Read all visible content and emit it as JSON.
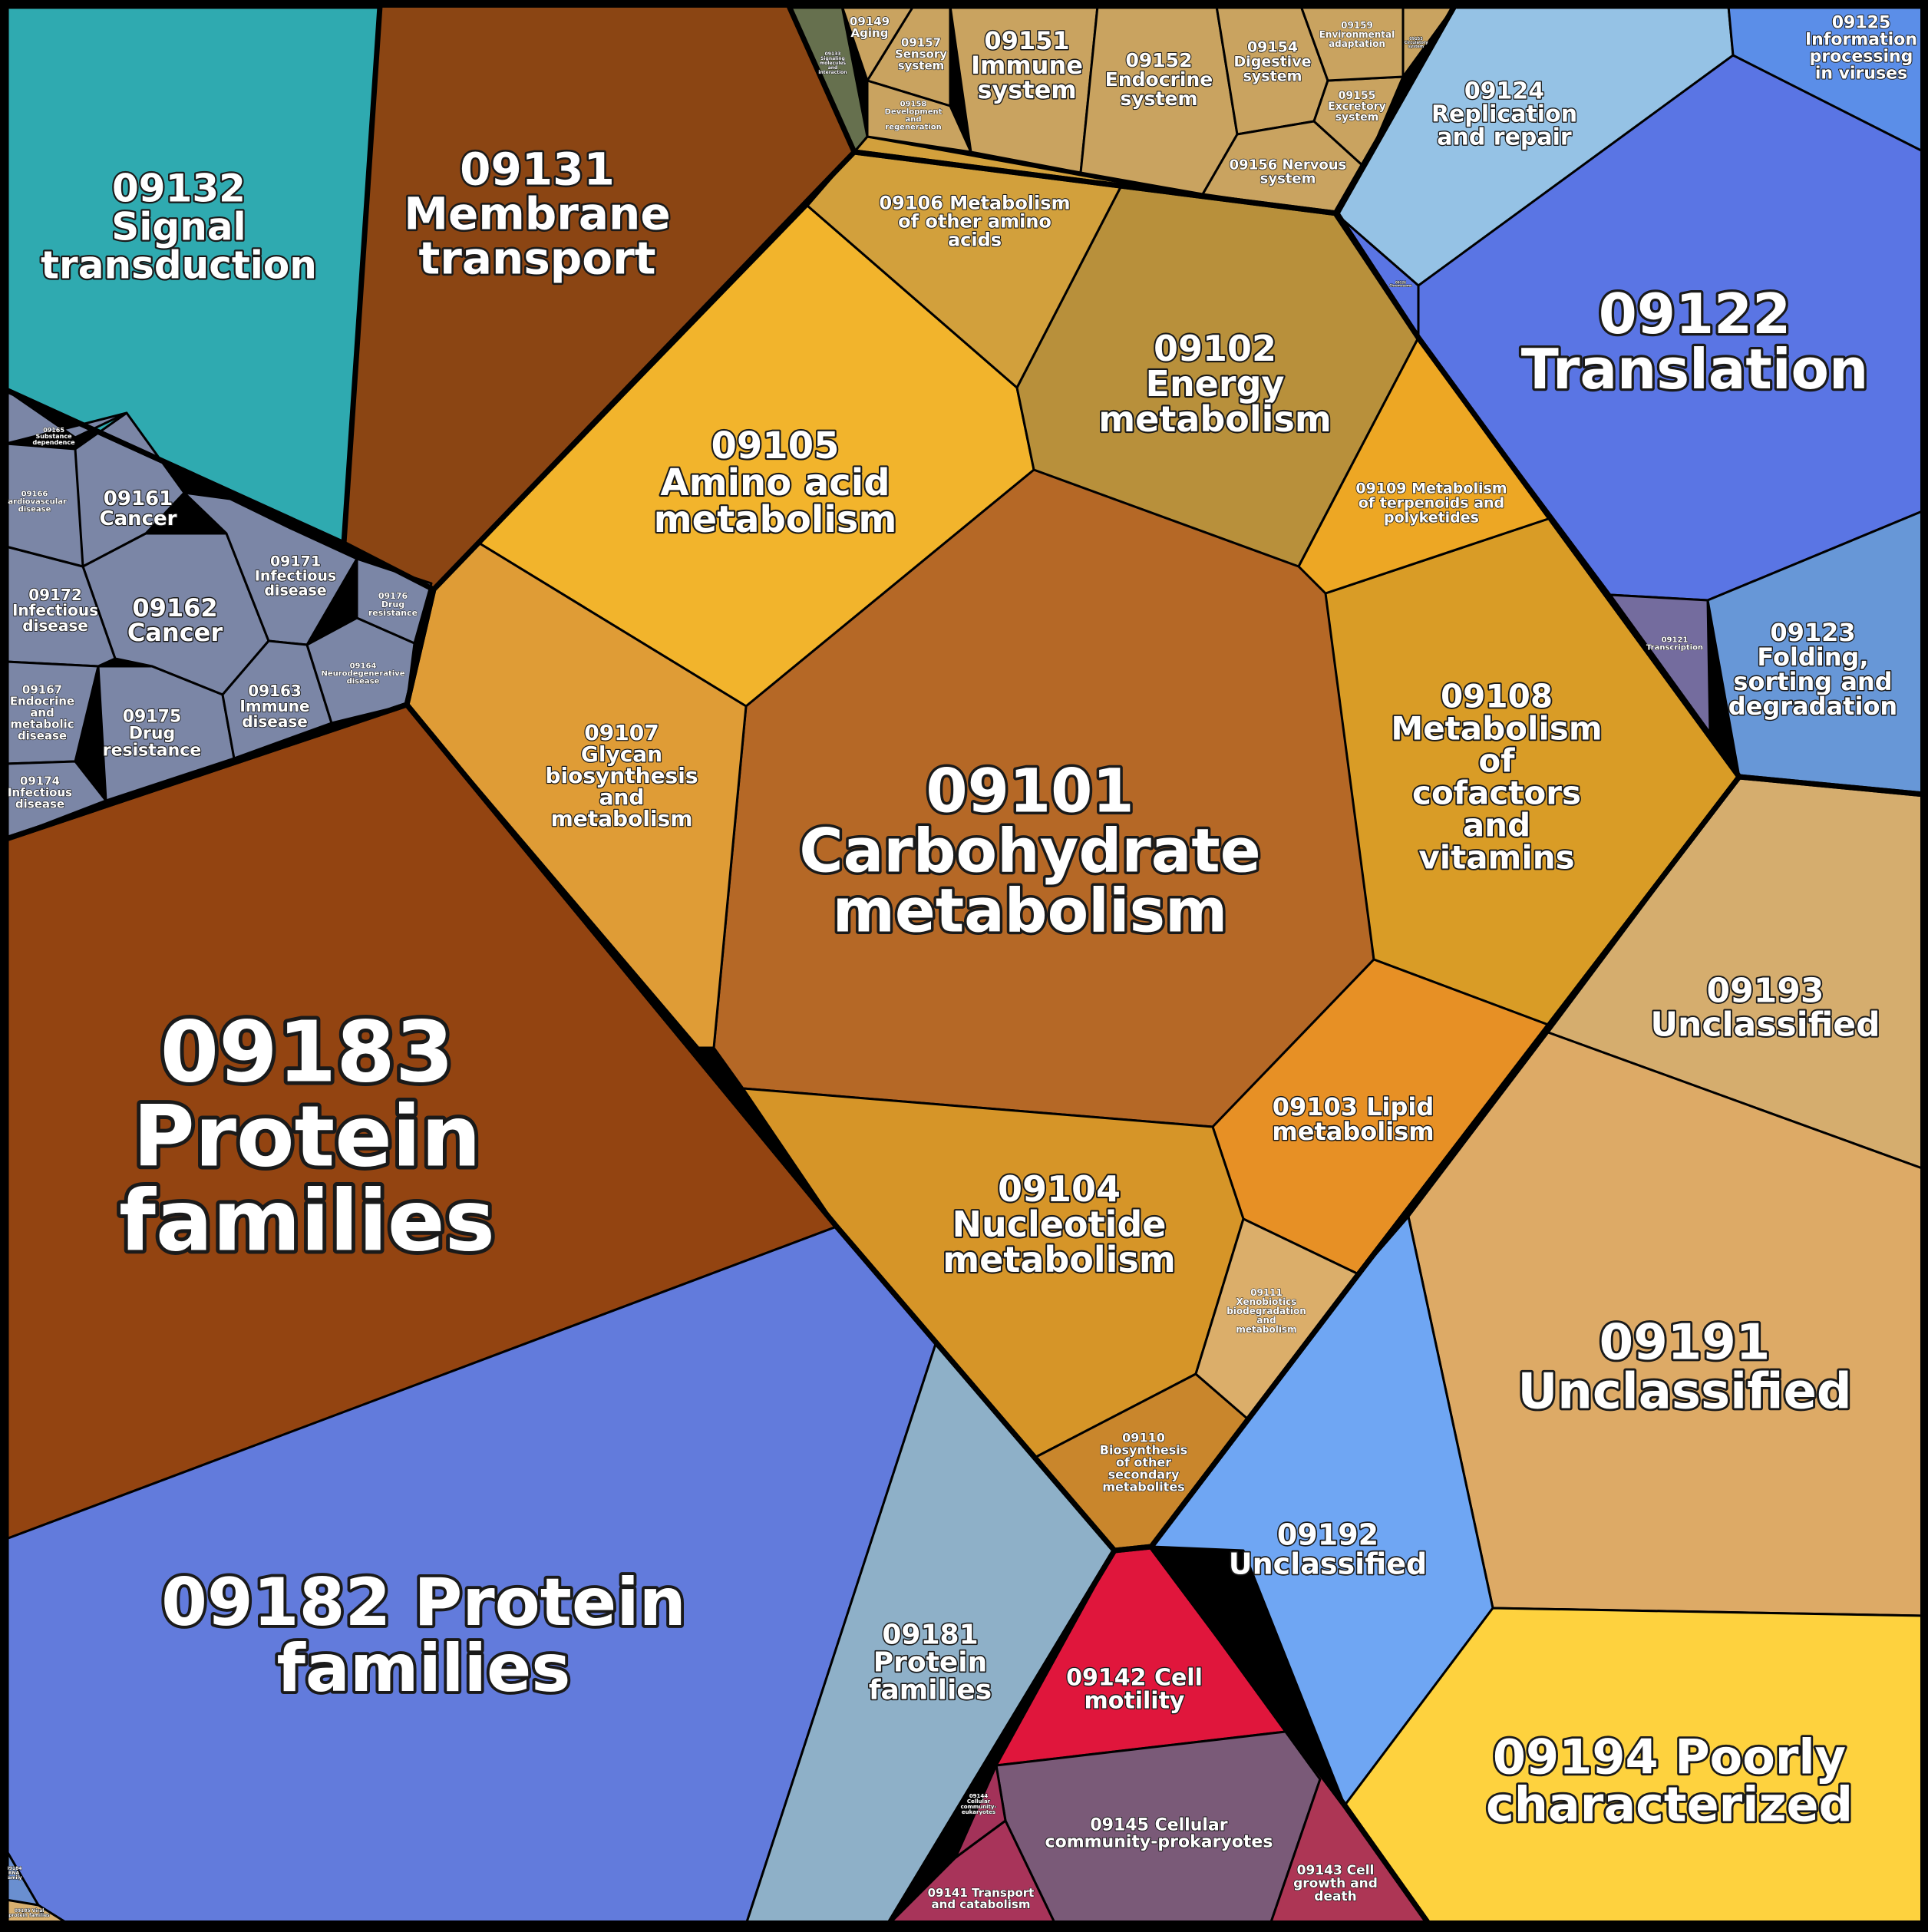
{
  "cells": [
    {
      "id": "c09132",
      "lines": [
        "09132",
        "Signal",
        "transduction"
      ],
      "color": "#2faab0"
    },
    {
      "id": "c09131",
      "lines": [
        "09131",
        "Membrane",
        "transport"
      ],
      "color": "#8b4513"
    },
    {
      "id": "c09183",
      "lines": [
        "09183",
        "Protein",
        "families"
      ],
      "color": "#934411"
    },
    {
      "id": "c09182",
      "lines": [
        "09182 Protein",
        "families"
      ],
      "color": "#627bdc"
    },
    {
      "id": "c09181",
      "lines": [
        "09181",
        "Protein",
        "families"
      ],
      "color": "#8eb0c8"
    },
    {
      "id": "c09101",
      "lines": [
        "09101",
        "Carbohydrate",
        "metabolism"
      ],
      "color": "#b56826"
    },
    {
      "id": "c09105",
      "lines": [
        "09105",
        "Amino acid",
        "metabolism"
      ],
      "color": "#f2b42c"
    },
    {
      "id": "c09102",
      "lines": [
        "09102",
        "Energy",
        "metabolism"
      ],
      "color": "#b8903b"
    },
    {
      "id": "c09106",
      "lines": [
        "09106 Metabolism",
        "of other amino",
        "acids"
      ],
      "color": "#d2a03c"
    },
    {
      "id": "c09107",
      "lines": [
        "09107",
        "Glycan",
        "biosynthesis",
        "and",
        "metabolism"
      ],
      "color": "#df9c36"
    },
    {
      "id": "c09108",
      "lines": [
        "09108",
        "Metabolism",
        "of",
        "cofactors",
        "and",
        "vitamins"
      ],
      "color": "#d99c26"
    },
    {
      "id": "c09109",
      "lines": [
        "09109 Metabolism",
        "of terpenoids and",
        "polyketides"
      ],
      "color": "#eda724"
    },
    {
      "id": "c09103",
      "lines": [
        "09103 Lipid",
        "metabolism"
      ],
      "color": "#e79025"
    },
    {
      "id": "c09104",
      "lines": [
        "09104",
        "Nucleotide",
        "metabolism"
      ],
      "color": "#d69528"
    },
    {
      "id": "c09110",
      "lines": [
        "09110",
        "Biosynthesis",
        "of other",
        "secondary",
        "metabolites"
      ],
      "color": "#c9862c"
    },
    {
      "id": "c09111",
      "lines": [
        "09111",
        "Xenobiotics",
        "biodegradation",
        "and",
        "metabolism"
      ],
      "color": "#dbae6a"
    },
    {
      "id": "c09122",
      "lines": [
        "09122",
        "Translation"
      ],
      "color": "#5a75e4"
    },
    {
      "id": "c09124",
      "lines": [
        "09124",
        "Replication",
        "and repair"
      ],
      "color": "#95c2e5"
    },
    {
      "id": "c09125",
      "lines": [
        "09125",
        "Information",
        "processing",
        "in viruses"
      ],
      "color": "#5b8ee8"
    },
    {
      "id": "c09123",
      "lines": [
        "09123",
        "Folding,",
        "sorting and",
        "degradation"
      ],
      "color": "#6797d7"
    },
    {
      "id": "c09121",
      "lines": [
        "09121",
        "Transcription"
      ],
      "color": "#746c9e"
    },
    {
      "id": "c09193",
      "lines": [
        "09193",
        "Unclassified"
      ],
      "color": "#d5ad6e"
    },
    {
      "id": "c09191",
      "lines": [
        "09191",
        "Unclassified"
      ],
      "color": "#ddaa66"
    },
    {
      "id": "c09192",
      "lines": [
        "09192",
        "Unclassified"
      ],
      "color": "#6fa6f3"
    },
    {
      "id": "c09194",
      "lines": [
        "09194 Poorly",
        "characterized"
      ],
      "color": "#fed23e"
    },
    {
      "id": "c09142",
      "lines": [
        "09142 Cell",
        "motility"
      ],
      "color": "#e0163c"
    },
    {
      "id": "c09145",
      "lines": [
        "09145 Cellular",
        "community-prokaryotes"
      ],
      "color": "#7a5a78"
    },
    {
      "id": "c09143",
      "lines": [
        "09143 Cell",
        "growth and",
        "death"
      ],
      "color": "#ad3655"
    },
    {
      "id": "c09141",
      "lines": [
        "09141 Transport",
        "and catabolism"
      ],
      "color": "#a8345a"
    },
    {
      "id": "c09144",
      "lines": [
        "09144",
        "Cellular",
        "community-",
        "eukaryotes"
      ],
      "color": "#a33259"
    },
    {
      "id": "c09151",
      "lines": [
        "09151",
        "Immune",
        "system"
      ],
      "color": "#c9a360"
    },
    {
      "id": "c09152",
      "lines": [
        "09152",
        "Endocrine",
        "system"
      ],
      "color": "#c9a360"
    },
    {
      "id": "c09154",
      "lines": [
        "09154",
        "Digestive",
        "system"
      ],
      "color": "#c9a360"
    },
    {
      "id": "c09156",
      "lines": [
        "09156 Nervous",
        "system"
      ],
      "color": "#c9a360"
    },
    {
      "id": "c09155",
      "lines": [
        "09155",
        "Excretory",
        "system"
      ],
      "color": "#c9a360"
    },
    {
      "id": "c09159",
      "lines": [
        "09159",
        "Environmental",
        "adaptation"
      ],
      "color": "#c9a360"
    },
    {
      "id": "c09157",
      "lines": [
        "09157",
        "Sensory",
        "system"
      ],
      "color": "#c9a360"
    },
    {
      "id": "c09158",
      "lines": [
        "09158",
        "Development",
        "and",
        "regeneration"
      ],
      "color": "#c9a360"
    },
    {
      "id": "c09149",
      "lines": [
        "09149",
        "Aging"
      ],
      "color": "#c9a360"
    },
    {
      "id": "c09153",
      "lines": [
        "09153",
        "Circulatory",
        "system"
      ],
      "color": "#c9a360"
    },
    {
      "id": "c09133",
      "lines": [
        "09133",
        "Signaling",
        "molecules",
        "and",
        "interaction"
      ],
      "color": "#66704e"
    },
    {
      "id": "c09161",
      "lines": [
        "09161",
        "Cancer"
      ],
      "color": "#7b86a6"
    },
    {
      "id": "c09162",
      "lines": [
        "09162",
        "Cancer"
      ],
      "color": "#7b86a6"
    },
    {
      "id": "c09171",
      "lines": [
        "09171",
        "Infectious",
        "disease"
      ],
      "color": "#7b86a6"
    },
    {
      "id": "c09172",
      "lines": [
        "09172",
        "Infectious",
        "disease"
      ],
      "color": "#7b86a6"
    },
    {
      "id": "c09175",
      "lines": [
        "09175",
        "Drug",
        "resistance"
      ],
      "color": "#7b86a6"
    },
    {
      "id": "c09163",
      "lines": [
        "09163",
        "Immune",
        "disease"
      ],
      "color": "#7b86a6"
    },
    {
      "id": "c09167",
      "lines": [
        "09167",
        "Endocrine",
        "and",
        "metabolic",
        "disease"
      ],
      "color": "#7b86a6"
    },
    {
      "id": "c09174",
      "lines": [
        "09174",
        "Infectious",
        "disease"
      ],
      "color": "#7b86a6"
    },
    {
      "id": "c09164",
      "lines": [
        "09164",
        "Neurodegenerative",
        "disease"
      ],
      "color": "#7b86a6"
    },
    {
      "id": "c09176",
      "lines": [
        "09176",
        "Drug",
        "resistance"
      ],
      "color": "#7b86a6"
    },
    {
      "id": "c09166",
      "lines": [
        "09166",
        "Cardiovascular",
        "disease"
      ],
      "color": "#7b86a6"
    },
    {
      "id": "c09165",
      "lines": [
        "09165",
        "Substance",
        "dependence"
      ],
      "color": "#7b86a6"
    },
    {
      "id": "c09184",
      "lines": [
        "09184",
        "RNA",
        "family"
      ],
      "color": "#6a8fd0"
    },
    {
      "id": "c09185",
      "lines": [
        "09185 Viral",
        "protein families"
      ],
      "color": "#d8b070"
    },
    {
      "id": "c09126",
      "lines": [
        "09126",
        "Chromosome"
      ],
      "color": "#5a75e4"
    }
  ]
}
